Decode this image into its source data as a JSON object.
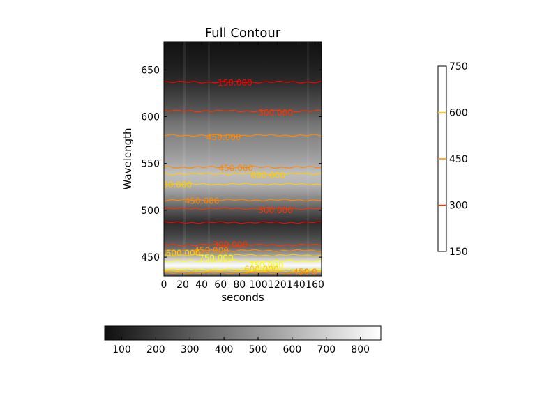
{
  "chart_data": {
    "type": "heatmap",
    "title": "Full Contour",
    "xlabel": "seconds",
    "ylabel": "Wavelength",
    "xlim": [
      0,
      167
    ],
    "ylim": [
      430,
      680
    ],
    "xticks": [
      0,
      20,
      40,
      60,
      80,
      100,
      120,
      140,
      160
    ],
    "yticks": [
      450,
      500,
      550,
      600,
      650
    ],
    "colormap": "gray",
    "grid": false,
    "intensity_profile": [
      {
        "wavelength": 430,
        "value": 320
      },
      {
        "wavelength": 438,
        "value": 760
      },
      {
        "wavelength": 441,
        "value": 850
      },
      {
        "wavelength": 445,
        "value": 780
      },
      {
        "wavelength": 452,
        "value": 560
      },
      {
        "wavelength": 460,
        "value": 350
      },
      {
        "wavelength": 475,
        "value": 220
      },
      {
        "wavelength": 487,
        "value": 150
      },
      {
        "wavelength": 500,
        "value": 290
      },
      {
        "wavelength": 512,
        "value": 450
      },
      {
        "wavelength": 528,
        "value": 610
      },
      {
        "wavelength": 540,
        "value": 640
      },
      {
        "wavelength": 552,
        "value": 560
      },
      {
        "wavelength": 565,
        "value": 500
      },
      {
        "wavelength": 580,
        "value": 450
      },
      {
        "wavelength": 595,
        "value": 380
      },
      {
        "wavelength": 605,
        "value": 300
      },
      {
        "wavelength": 620,
        "value": 230
      },
      {
        "wavelength": 637,
        "value": 150
      },
      {
        "wavelength": 655,
        "value": 100
      },
      {
        "wavelength": 680,
        "value": 60
      }
    ],
    "contour_lines": [
      {
        "level": 150,
        "wavelength": 637,
        "color": "#ff0000"
      },
      {
        "level": 300,
        "wavelength": 606,
        "color": "#ff3300"
      },
      {
        "level": 450,
        "wavelength": 580,
        "color": "#ff8800"
      },
      {
        "level": 450,
        "wavelength": 546,
        "color": "#ff8800"
      },
      {
        "level": 600,
        "wavelength": 539,
        "color": "#ffcc00"
      },
      {
        "level": 600,
        "wavelength": 528,
        "color": "#ffcc00"
      },
      {
        "level": 450,
        "wavelength": 511,
        "color": "#ff8800"
      },
      {
        "level": 300,
        "wavelength": 502,
        "color": "#ff3300"
      },
      {
        "level": 150,
        "wavelength": 487,
        "color": "#ff0000"
      },
      {
        "level": 300,
        "wavelength": 463,
        "color": "#ff3300"
      },
      {
        "level": 450,
        "wavelength": 457,
        "color": "#ff8800"
      },
      {
        "level": 600,
        "wavelength": 452,
        "color": "#ffcc00"
      },
      {
        "level": 750,
        "wavelength": 446,
        "color": "#ffff00"
      },
      {
        "level": 750,
        "wavelength": 437,
        "color": "#ffff00"
      },
      {
        "level": 600,
        "wavelength": 435,
        "color": "#ffcc00"
      },
      {
        "level": 450,
        "wavelength": 433,
        "color": "#ff8800"
      }
    ],
    "contour_labels": [
      {
        "text": "150.000",
        "x": 57,
        "y": 636,
        "color": "#ff0000"
      },
      {
        "text": "300.000",
        "x": 100,
        "y": 604,
        "color": "#ff3300"
      },
      {
        "text": "450.000",
        "x": 45,
        "y": 578,
        "color": "#ff8800"
      },
      {
        "text": "450.000",
        "x": 58,
        "y": 545,
        "color": "#ff8800"
      },
      {
        "text": "600.000",
        "x": 92,
        "y": 537,
        "color": "#ffcc00"
      },
      {
        "text": "600.000",
        "x": -7,
        "y": 527,
        "color": "#ffcc00"
      },
      {
        "text": "450.000",
        "x": 22,
        "y": 510,
        "color": "#ff8800"
      },
      {
        "text": "300.000",
        "x": 100,
        "y": 500,
        "color": "#ff3300"
      },
      {
        "text": "300.000",
        "x": 52,
        "y": 463,
        "color": "#ff3300"
      },
      {
        "text": "450.000",
        "x": 32,
        "y": 457,
        "color": "#ff8800"
      },
      {
        "text": "600.000",
        "x": 2,
        "y": 454,
        "color": "#ffcc00"
      },
      {
        "text": "750.000",
        "x": 37,
        "y": 449,
        "color": "#ffff00"
      },
      {
        "text": "750.000",
        "x": 90,
        "y": 441,
        "color": "#ffff00"
      },
      {
        "text": "600.000",
        "x": 85,
        "y": 437,
        "color": "#ffcc00"
      },
      {
        "text": "450.0",
        "x": 137,
        "y": 434,
        "color": "#ff8800"
      }
    ],
    "colorbar_image": {
      "orientation": "horizontal",
      "range": [
        50,
        860
      ],
      "ticks": [
        100,
        200,
        300,
        400,
        500,
        600,
        700,
        800
      ]
    },
    "colorbar_contour": {
      "orientation": "vertical",
      "range": [
        150,
        750
      ],
      "ticks": [
        150,
        300,
        450,
        600,
        750
      ],
      "line_levels": [
        {
          "level": 300,
          "color": "#ff3300"
        },
        {
          "level": 450,
          "color": "#ff8800"
        },
        {
          "level": 600,
          "color": "#ffcc00"
        }
      ]
    }
  }
}
